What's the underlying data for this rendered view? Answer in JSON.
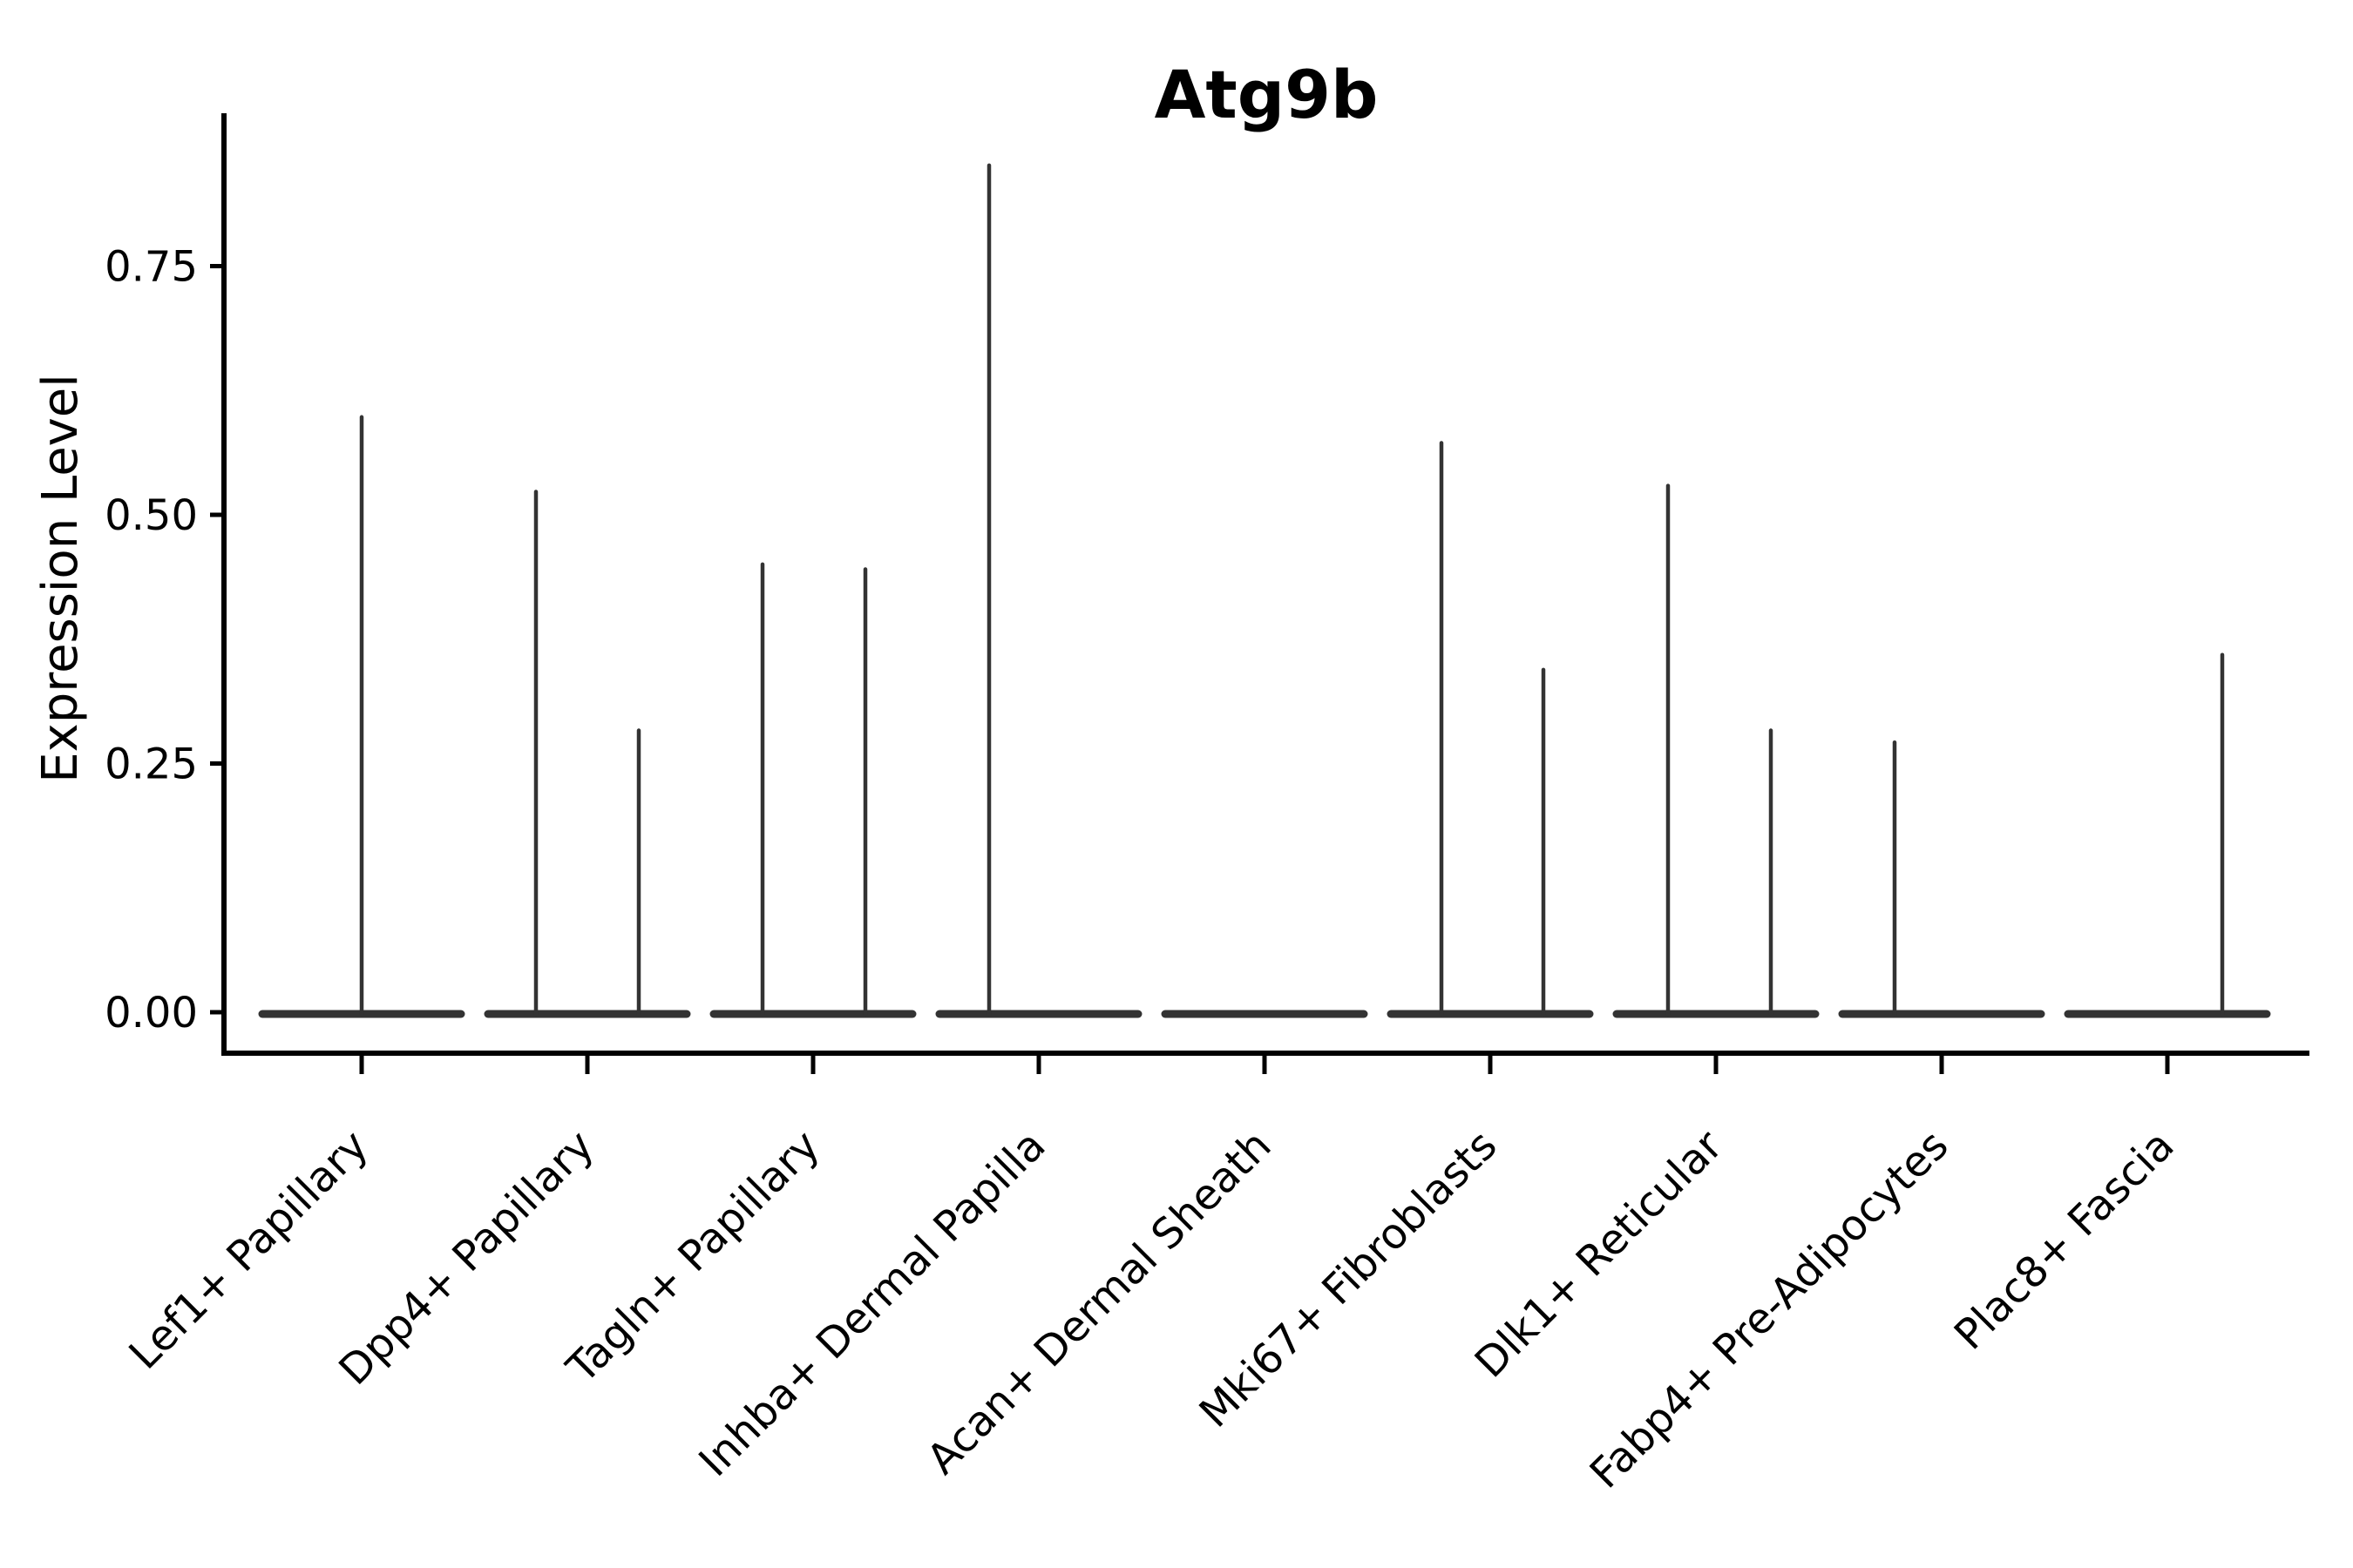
{
  "figure": {
    "title": "Atg9b"
  },
  "chart_data": {
    "type": "violin",
    "title": "Atg9b",
    "xlabel": "",
    "ylabel": "Expression Level",
    "ylim": [
      -0.043,
      0.912
    ],
    "yticks": [
      0,
      0.25,
      0.5,
      0.75
    ],
    "ytick_labels": [
      "0.00",
      "0.25",
      "0.50",
      "0.75"
    ],
    "grid": false,
    "legend": null,
    "x_label_rotation_deg": 45,
    "categories": [
      "Lef1+ Papillary",
      "Dpp4+ Papillary",
      "Tagln+ Papillary",
      "Inhba+ Dermal Papilla",
      "Acan+ Dermal Sheath",
      "Mki67+ Fibroblasts",
      "Dlk1+ Reticular",
      "Fabp4+ Pre-Adipocytes",
      "Plac8+ Fascia"
    ],
    "description": "Violin plot of Atg9b expression; each cluster shows a wide flat density at 0 with thin spikes up to the maximum expressing cells. dx = horizontal offset of each spike from the cluster tick (px of 2700-wide figure), max = top expression value of that spike.",
    "groups": [
      {
        "label": "Lef1+ Papillary",
        "spikes": [
          {
            "dx": 0,
            "max": 0.6
          }
        ]
      },
      {
        "label": "Dpp4+ Papillary",
        "spikes": [
          {
            "dx": -59,
            "max": 0.525
          },
          {
            "dx": 59,
            "max": 0.285
          }
        ]
      },
      {
        "label": "Tagln+ Papillary",
        "spikes": [
          {
            "dx": -58,
            "max": 0.452
          },
          {
            "dx": 60,
            "max": 0.447
          }
        ]
      },
      {
        "label": "Inhba+ Dermal Papilla",
        "spikes": [
          {
            "dx": -57,
            "max": 0.853
          }
        ]
      },
      {
        "label": "Acan+ Dermal Sheath",
        "spikes": []
      },
      {
        "label": "Mki67+ Fibroblasts",
        "spikes": [
          {
            "dx": -56,
            "max": 0.574
          },
          {
            "dx": 61,
            "max": 0.346
          }
        ]
      },
      {
        "label": "Dlk1+ Reticular",
        "spikes": [
          {
            "dx": -55,
            "max": 0.531
          },
          {
            "dx": 63,
            "max": 0.285
          }
        ]
      },
      {
        "label": "Fabp4+ Pre-Adipocytes",
        "spikes": [
          {
            "dx": -54,
            "max": 0.273
          }
        ]
      },
      {
        "label": "Plac8+ Fascia",
        "spikes": [
          {
            "dx": 63,
            "max": 0.361
          }
        ]
      }
    ],
    "colors": {
      "violin": "#333333",
      "axis": "#000000",
      "text": "#000000",
      "background": "#ffffff"
    }
  }
}
